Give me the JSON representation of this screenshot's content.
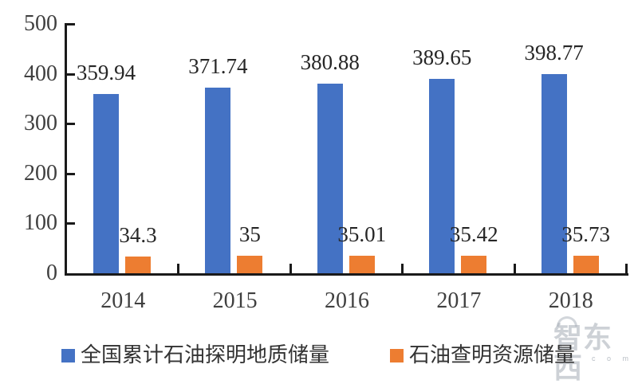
{
  "chart_data": {
    "type": "bar",
    "title": "",
    "xlabel": "",
    "ylabel": "",
    "categories": [
      "2014",
      "2015",
      "2016",
      "2017",
      "2018"
    ],
    "series": [
      {
        "name": "全国累计石油探明地质储量",
        "color": "#4472C4",
        "values": [
          359.94,
          371.74,
          380.88,
          389.65,
          398.77
        ],
        "labels": [
          "359.94",
          "371.74",
          "380.88",
          "389.65",
          "398.77"
        ]
      },
      {
        "name": "石油查明资源储量",
        "color": "#ED7D31",
        "values": [
          34.3,
          35,
          35.01,
          35.42,
          35.73
        ],
        "labels": [
          "34.3",
          "35",
          "35.01",
          "35.42",
          "35.73"
        ]
      }
    ],
    "ylim": [
      0,
      500
    ],
    "y_ticks": [
      0,
      100,
      200,
      300,
      400,
      500
    ],
    "grid": false,
    "data_labels": true,
    "legend_position": "bottom",
    "axis_color": "#1a1a1a",
    "tick_label_color": "#3f3f3f",
    "value_label_color": "#262626"
  },
  "watermark": {
    "text": "智东西",
    "subtext": "c o m"
  }
}
